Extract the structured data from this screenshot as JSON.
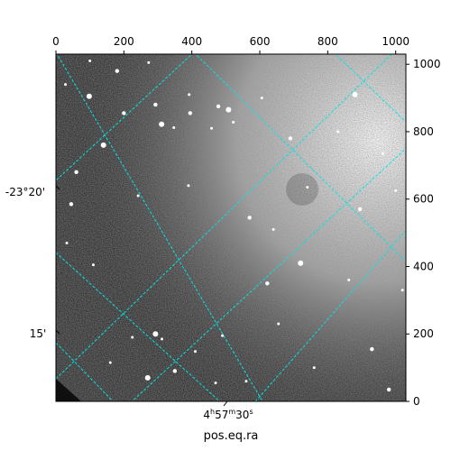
{
  "chart_data": {
    "type": "heatmap",
    "title": "",
    "colormap": "gray",
    "pixel_axes": {
      "x_range": [
        0,
        1030
      ],
      "y_range": [
        0,
        1030
      ],
      "top_ticks": [
        "0",
        "200",
        "400",
        "600",
        "800",
        "1000"
      ],
      "top_tick_values": [
        0,
        200,
        400,
        600,
        800,
        1000
      ],
      "right_ticks": [
        "0",
        "200",
        "400",
        "600",
        "800",
        "1000"
      ],
      "right_tick_values": [
        0,
        200,
        400,
        600,
        800,
        1000
      ]
    },
    "world_axes": {
      "xlabel": "pos.eq.ra",
      "ra_tick_label": {
        "h": "4",
        "h_unit": "h",
        "m": "57",
        "m_unit": "m",
        "s": "30",
        "s_unit": "s"
      },
      "dec_tick_labels": [
        "-23°20'",
        "15'"
      ]
    },
    "grid": {
      "shown": true,
      "color": "#00e5e5",
      "style": "dashed"
    },
    "stars": [
      [
        98,
        905
      ],
      [
        100,
        1010
      ],
      [
        28,
        940
      ],
      [
        200,
        855
      ],
      [
        242,
        610
      ],
      [
        273,
        1005
      ],
      [
        293,
        880
      ],
      [
        311,
        822
      ],
      [
        347,
        812
      ],
      [
        395,
        855
      ],
      [
        392,
        910
      ],
      [
        458,
        810
      ],
      [
        478,
        875
      ],
      [
        522,
        828
      ],
      [
        508,
        865
      ],
      [
        570,
        545
      ],
      [
        606,
        900
      ],
      [
        640,
        510
      ],
      [
        690,
        780
      ],
      [
        740,
        635
      ],
      [
        830,
        800
      ],
      [
        880,
        910
      ],
      [
        962,
        735
      ],
      [
        1000,
        625
      ],
      [
        895,
        570
      ],
      [
        1020,
        330
      ],
      [
        862,
        360
      ],
      [
        930,
        155
      ],
      [
        720,
        410
      ],
      [
        655,
        230
      ],
      [
        622,
        350
      ],
      [
        490,
        195
      ],
      [
        410,
        148
      ],
      [
        350,
        90
      ],
      [
        312,
        185
      ],
      [
        293,
        200
      ],
      [
        45,
        585
      ],
      [
        110,
        405
      ],
      [
        32,
        470
      ],
      [
        60,
        680
      ],
      [
        160,
        115
      ],
      [
        225,
        190
      ],
      [
        270,
        70
      ],
      [
        390,
        640
      ],
      [
        760,
        100
      ],
      [
        980,
        35
      ],
      [
        560,
        60
      ],
      [
        470,
        55
      ],
      [
        180,
        980
      ],
      [
        140,
        760
      ]
    ]
  }
}
